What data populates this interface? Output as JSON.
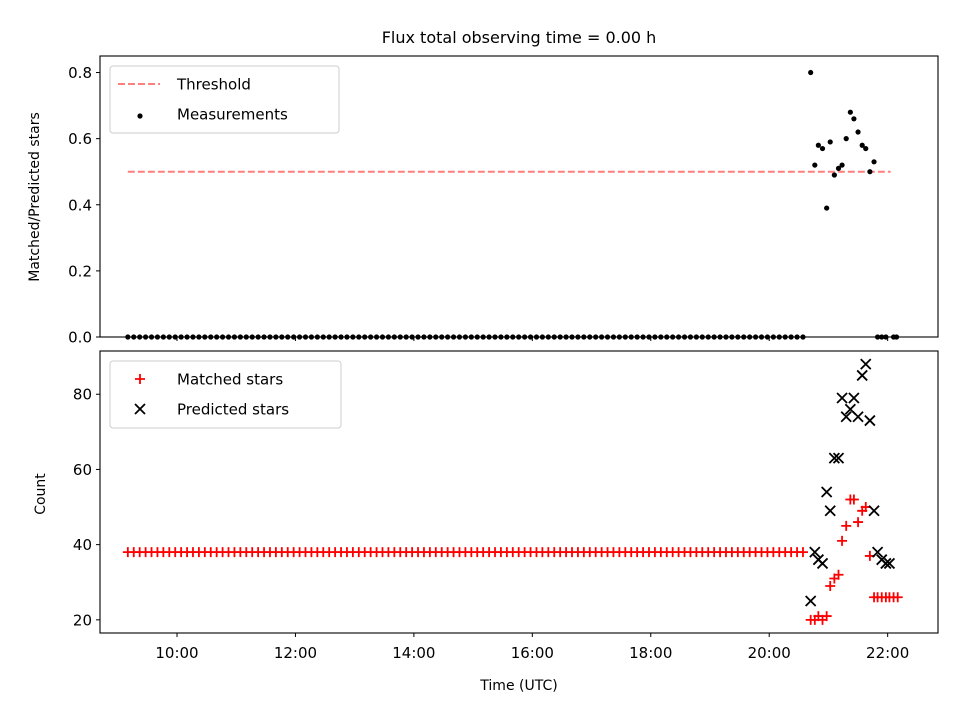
{
  "title": "Flux total observing time = 0.00 h",
  "xlabel": "Time (UTC)",
  "colors": {
    "threshold": "#ff7f7f",
    "measurement": "#000000",
    "matched": "#ff0000",
    "predicted": "#000000"
  },
  "chart_data": [
    {
      "type": "scatter",
      "title": "Flux total observing time = 0.00 h",
      "ylabel": "Matched/Predicted stars",
      "xlabel": "",
      "xlim": [
        8.7,
        22.85
      ],
      "ylim": [
        0,
        0.85
      ],
      "yticks": [
        0.0,
        0.2,
        0.4,
        0.6,
        0.8
      ],
      "ytick_labels": [
        "0.0",
        "0.2",
        "0.4",
        "0.6",
        "0.8"
      ],
      "xticks": [
        10,
        12,
        14,
        16,
        18,
        20,
        22
      ],
      "legend": {
        "position": "top-left",
        "entries": [
          "Threshold",
          "Measurements"
        ]
      },
      "threshold": {
        "name": "Threshold",
        "value": 0.5,
        "x_range": [
          9.17,
          22.05
        ]
      },
      "series": [
        {
          "name": "Measurements",
          "marker": "dot",
          "zero_run": {
            "start": 9.17,
            "end": 20.63,
            "step": 0.1,
            "value": 0
          },
          "x": [
            20.7,
            20.77,
            20.83,
            20.9,
            20.97,
            21.03,
            21.1,
            21.17,
            21.23,
            21.3,
            21.37,
            21.43,
            21.5,
            21.57,
            21.63,
            21.7,
            21.77,
            21.83,
            21.9,
            21.97,
            22.1,
            22.15
          ],
          "y": [
            0.8,
            0.52,
            0.58,
            0.57,
            0.39,
            0.59,
            0.49,
            0.51,
            0.52,
            0.6,
            0.68,
            0.66,
            0.62,
            0.58,
            0.57,
            0.5,
            0.53,
            0.0,
            0.0,
            0.0,
            0.0,
            0.0
          ]
        }
      ]
    },
    {
      "type": "scatter",
      "title": "",
      "ylabel": "Count",
      "xlabel": "Time (UTC)",
      "xlim": [
        8.7,
        22.85
      ],
      "ylim": [
        16.5,
        91.5
      ],
      "yticks": [
        20,
        40,
        60,
        80
      ],
      "ytick_labels": [
        "20",
        "40",
        "60",
        "80"
      ],
      "xticks": [
        10,
        12,
        14,
        16,
        18,
        20,
        22
      ],
      "xtick_labels": [
        "10:00",
        "12:00",
        "14:00",
        "16:00",
        "18:00",
        "20:00",
        "22:00"
      ],
      "legend": {
        "position": "top-left",
        "entries": [
          "Matched stars",
          "Predicted stars"
        ]
      },
      "series": [
        {
          "name": "Matched stars",
          "marker": "plus",
          "constant_run": {
            "start": 9.17,
            "end": 20.63,
            "step": 0.1,
            "value": 38
          },
          "x": [
            20.7,
            20.77,
            20.83,
            20.9,
            20.97,
            21.03,
            21.1,
            21.17,
            21.23,
            21.3,
            21.37,
            21.43,
            21.5,
            21.57,
            21.63,
            21.7,
            21.77,
            21.83,
            21.9,
            21.97,
            22.03,
            22.1,
            22.17
          ],
          "y": [
            20,
            20,
            21,
            20,
            21,
            29,
            31,
            32,
            41,
            45,
            52,
            52,
            46,
            49,
            50,
            37,
            26,
            26,
            26,
            26,
            26,
            26,
            26
          ]
        },
        {
          "name": "Predicted stars",
          "marker": "x",
          "x": [
            20.7,
            20.77,
            20.83,
            20.9,
            20.97,
            21.03,
            21.1,
            21.17,
            21.23,
            21.3,
            21.37,
            21.43,
            21.5,
            21.57,
            21.63,
            21.7,
            21.77,
            21.83,
            21.9,
            21.97,
            22.03
          ],
          "y": [
            25,
            38,
            36,
            35,
            54,
            49,
            63,
            63,
            79,
            74,
            76,
            79,
            74,
            85,
            88,
            73,
            49,
            38,
            36,
            35,
            35
          ]
        }
      ]
    }
  ]
}
